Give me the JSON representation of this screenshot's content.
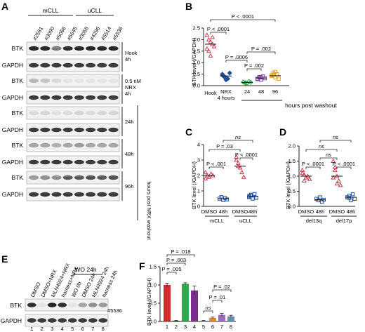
{
  "panels": {
    "A": {
      "label": "A",
      "group_mcll": "mCLL",
      "group_ucll": "uCLL",
      "samples": [
        "#2581",
        "#3090",
        "#5066",
        "#5645",
        "#3058",
        "#4296",
        "#5514",
        "#5536"
      ],
      "rows": [
        {
          "protein": "BTK",
          "condition": "Hook",
          "cond2": "4h",
          "intensity": [
            0.95,
            0.95,
            0.55,
            0.9,
            0.95,
            0.95,
            0.95,
            0.95
          ]
        },
        {
          "protein": "GAPDH",
          "intensity": [
            0.85,
            0.85,
            0.85,
            0.85,
            0.85,
            0.85,
            0.85,
            0.85
          ]
        },
        {
          "protein": "BTK",
          "condition": "0.5 nM",
          "cond2": "NRX",
          "cond3": "4h",
          "intensity": [
            0.25,
            0.2,
            0.1,
            0.05,
            0.05,
            0.05,
            0.05,
            0.05
          ]
        },
        {
          "protein": "GAPDH",
          "intensity": [
            0.85,
            0.85,
            0.85,
            0.85,
            0.85,
            0.85,
            0.85,
            0.85
          ]
        },
        {
          "protein": "BTK",
          "condition": "24h",
          "intensity": [
            0.1,
            0.12,
            0.08,
            0.1,
            0.12,
            0.1,
            0.12,
            0.12
          ]
        },
        {
          "protein": "GAPDH",
          "intensity": [
            0.85,
            0.85,
            0.85,
            0.85,
            0.85,
            0.85,
            0.85,
            0.85
          ]
        },
        {
          "protein": "BTK",
          "condition": "48h",
          "intensity": [
            0.35,
            0.35,
            0.3,
            0.35,
            0.4,
            0.35,
            0.35,
            0.35
          ]
        },
        {
          "protein": "GAPDH",
          "intensity": [
            0.85,
            0.85,
            0.85,
            0.85,
            0.85,
            0.85,
            0.85,
            0.85
          ]
        },
        {
          "protein": "BTK",
          "condition": "96h",
          "intensity": [
            0.4,
            0.45,
            0.45,
            0.7,
            0.7,
            0.75,
            0.7,
            0.75
          ]
        },
        {
          "protein": "GAPDH",
          "intensity": [
            0.85,
            0.85,
            0.85,
            0.85,
            0.85,
            0.85,
            0.85,
            0.85
          ]
        }
      ],
      "side_label": "hours post NRX washout"
    },
    "B": {
      "label": "B",
      "ylabel": "BTK level (/GAPDH)",
      "yticks": [
        "0.0",
        "0.5",
        "1.0",
        "1.5",
        "2.0",
        "2.5"
      ],
      "xticks": [
        "Hook",
        "NRX\n4 hours",
        "24",
        "48",
        "96"
      ],
      "xlabel_group": "hours post washout",
      "pvals": [
        "P < .0001",
        "P < .0001",
        "P = .0006",
        "P = .002",
        "P = .002"
      ],
      "colors": {
        "hook": "#c83a4f",
        "nrx": "#1f4e9c",
        "h24": "#27a34a",
        "h48": "#7b3f9e",
        "h96": "#e0a020"
      }
    },
    "C": {
      "label": "C",
      "ylabel": "BTK level (/GAPDH)",
      "yticks": [
        "0",
        "1",
        "2",
        "3",
        "4"
      ],
      "xticks": [
        "DMSO",
        "48h",
        "DMSO",
        "48h"
      ],
      "groups": [
        "mCLL",
        "uCLL"
      ],
      "pvals": [
        "ns",
        "P = .03",
        "P < .0001",
        "P < .001"
      ],
      "colors": {
        "dmso": "#c83a4f",
        "h48": "#1f4e9c"
      }
    },
    "D": {
      "label": "D",
      "ylabel": "BTK level (/GAPDH)",
      "yticks": [
        "0.0",
        "0.5",
        "1.0",
        "1.5",
        "2.0"
      ],
      "xticks": [
        "DMSO",
        "48h",
        "DMSO",
        "48h"
      ],
      "groups": [
        "del13q",
        "del17p"
      ],
      "pvals": [
        "ns",
        "ns",
        "ns",
        "P < .0001",
        "P < .0001"
      ],
      "colors": {
        "dmso": "#c83a4f",
        "h48": "#1f4e9c"
      }
    },
    "E": {
      "label": "E",
      "wo_label": "WO 24h",
      "lanes": [
        "DMSO",
        "DMSO+NRX",
        "MLN4924+NRX",
        "harness+NRX",
        "WO 0h",
        "DMSO 24h",
        "MLN4924 24h",
        "harness 24h"
      ],
      "lane_numbers": [
        "1",
        "2",
        "3",
        "4",
        "5",
        "6",
        "7",
        "8"
      ],
      "rows": [
        {
          "protein": "BTK",
          "intensity": [
            0.9,
            0.05,
            0.95,
            0.9,
            0.05,
            0.35,
            0.45,
            0.4
          ]
        },
        {
          "protein": "GAPDH",
          "intensity": [
            0.85,
            0.85,
            0.85,
            0.85,
            0.85,
            0.85,
            0.85,
            0.85
          ]
        }
      ],
      "sample_id": "#5536"
    },
    "F": {
      "label": "F",
      "ylabel": "BTK level (/GAPDH)",
      "yticks": [
        "0.0",
        "0.5",
        "1.0",
        "1.5"
      ],
      "lane_numbers": [
        "1",
        "2",
        "3",
        "4",
        "5",
        "6",
        "7",
        "8"
      ],
      "pvals": [
        "P = .018",
        "P = .003",
        "P = .005",
        "P = .02",
        "P = .01",
        "ns"
      ],
      "chart_data": {
        "type": "bar",
        "categories": [
          "1",
          "2",
          "3",
          "4",
          "5",
          "6",
          "7",
          "8"
        ],
        "values": [
          1.0,
          0.02,
          1.03,
          0.85,
          0.02,
          0.1,
          0.18,
          0.14
        ],
        "errors": [
          0.05,
          0.01,
          0.03,
          0.12,
          0.01,
          0.02,
          0.04,
          0.03
        ],
        "ylim": [
          0,
          1.5
        ],
        "colors": [
          "#d62a2a",
          "#2a2ad6",
          "#2ea84a",
          "#7b2e8e",
          "#e07020",
          "#e08a3a",
          "#9b6fc0",
          "#6a8fb0"
        ]
      }
    }
  }
}
